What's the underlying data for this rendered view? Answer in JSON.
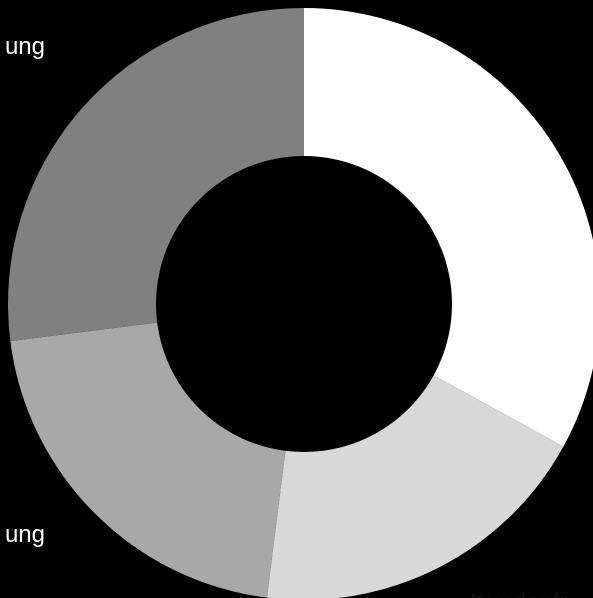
{
  "chart_data": {
    "type": "pie",
    "variant": "donut",
    "title": "",
    "slices": [
      {
        "label": "",
        "value": 33,
        "color": "#ffffff"
      },
      {
        "label": "Kundenfr",
        "value": 19,
        "color": "#d8d8d8"
      },
      {
        "label": "ung",
        "value": 21,
        "color": "#a8a8a8"
      },
      {
        "label": "ung",
        "value": 27,
        "color": "#808080"
      }
    ],
    "start_angle_deg": 0,
    "direction": "clockwise",
    "legend": "none"
  }
}
